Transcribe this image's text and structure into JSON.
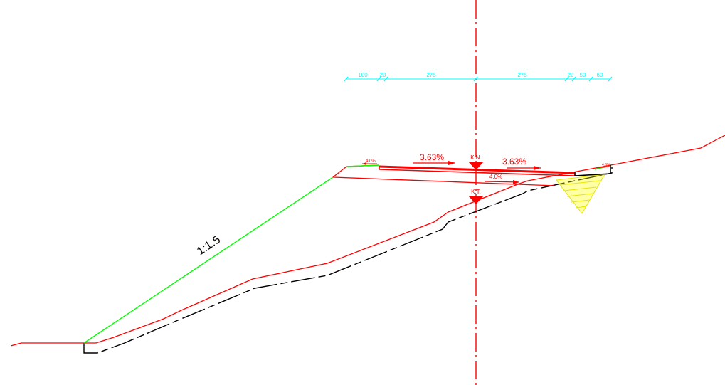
{
  "colors": {
    "background": "#ffffff",
    "design_line": "#ff0000",
    "ground_line": "#000000",
    "slope_line": "#00ff00",
    "dimension": "#00ffff",
    "ditch_fill": "#ffff00"
  },
  "dimensions": [
    "100",
    "20",
    "275",
    "275",
    "20",
    "50",
    "60"
  ],
  "slopes": {
    "left_road": "3.63%",
    "right_road": "3.63%",
    "left_shoulder": "4.0%",
    "lower_layer": "4.0%",
    "right_shoulder": "4.0%"
  },
  "markers": {
    "top": "K.N.",
    "bottom": "K.T."
  },
  "embankment_ratio": "1:1.5"
}
